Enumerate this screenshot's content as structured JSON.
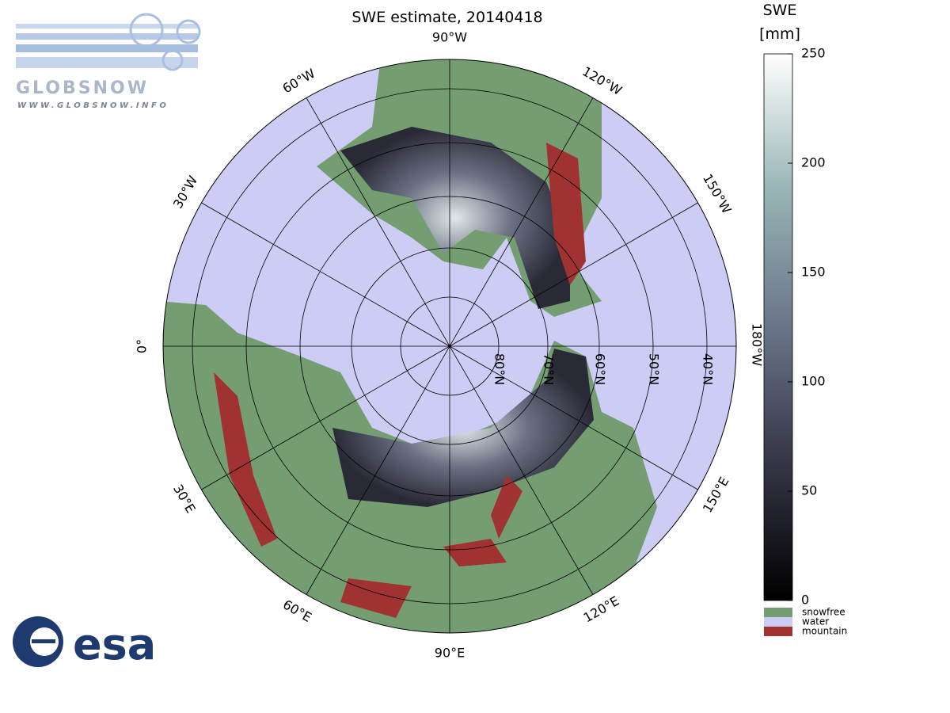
{
  "title": "SWE estimate, 20140418",
  "meridian_labels": [
    "90°W",
    "120°W",
    "150°W",
    "180°W",
    "150°E",
    "120°E",
    "90°E",
    "60°E",
    "30°E",
    "0°",
    "30°W",
    "60°W"
  ],
  "parallel_labels": [
    "80°N",
    "70°N",
    "60°N",
    "50°N",
    "40°N"
  ],
  "colorbar": {
    "title": [
      "SWE",
      "[mm]"
    ],
    "lim": [
      0,
      250
    ],
    "ticks": [
      0,
      50,
      100,
      150,
      200,
      250
    ]
  },
  "legend": [
    "snowfree",
    "water",
    "mountain"
  ],
  "logos": {
    "globsnow": "GLOBSNOW",
    "url": "WWW.GLOBSNOW.INFO",
    "esa": "esa"
  }
}
